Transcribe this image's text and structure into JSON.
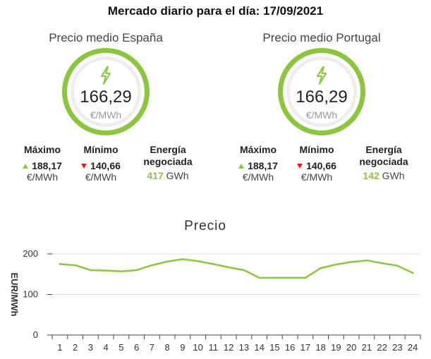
{
  "header": {
    "title": "Mercado diario para el día: 17/09/2021"
  },
  "panels": [
    {
      "title": "Precio medio España",
      "value": "166,29",
      "unit": "€/MWh",
      "max_label": "Máximo",
      "max_value": "188,17",
      "max_unit": "€/MWh",
      "min_label": "Mínimo",
      "min_value": "140,66",
      "min_unit": "€/MWh",
      "energy_label_1": "Energía",
      "energy_label_2": "negociada",
      "energy_value": "417",
      "energy_unit": "GWh"
    },
    {
      "title": "Precio medio Portugal",
      "value": "166,29",
      "unit": "€/MWh",
      "max_label": "Máximo",
      "max_value": "188,17",
      "max_unit": "€/MWh",
      "min_label": "Mínimo",
      "min_value": "140,66",
      "min_unit": "€/MWh",
      "energy_label_1": "Energía",
      "energy_label_2": "negociada",
      "energy_value": "142",
      "energy_unit": "GWh"
    }
  ],
  "colors": {
    "accent": "#8cc63f",
    "down": "#e02020",
    "ring_inner": "#eeeeee"
  },
  "icons": {
    "gauge": "lightning-bolt-icon",
    "max": "triangle-up-icon",
    "min": "triangle-down-icon"
  },
  "chart_data": {
    "type": "line",
    "title": "Precio",
    "xlabel": "",
    "ylabel": "EUR/MWh",
    "x": [
      1,
      2,
      3,
      4,
      5,
      6,
      7,
      8,
      9,
      10,
      11,
      12,
      13,
      14,
      15,
      16,
      17,
      18,
      19,
      20,
      21,
      22,
      23,
      24
    ],
    "series": [
      {
        "values": [
          175,
          172,
          160,
          159,
          157,
          160,
          172,
          181,
          187,
          182,
          175,
          167,
          160,
          141,
          141,
          141,
          141,
          165,
          174,
          180,
          184,
          177,
          171,
          153
        ]
      }
    ],
    "ylim": [
      0,
      200
    ],
    "yticks": [
      0,
      100,
      200
    ],
    "grid": true,
    "color": "#8cc63f"
  }
}
